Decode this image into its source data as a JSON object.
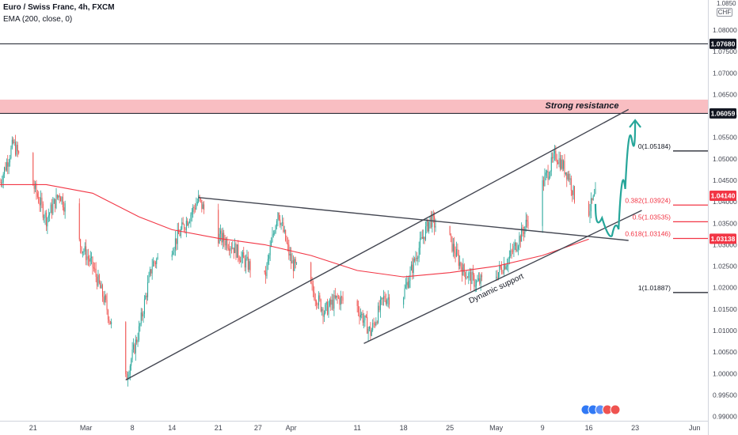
{
  "header": {
    "title": "Euro / Swiss Franc, 4h, FXCM",
    "indicator": "EMA (200, close, 0)"
  },
  "currency_badge": [
    "1.0850",
    "CHF"
  ],
  "chart_data": {
    "type": "candlestick",
    "symbol": "Euro / Swiss Franc",
    "timeframe": "4h",
    "source": "FXCM",
    "ylim": [
      0.989,
      1.087
    ],
    "y_ticks": [
      0.99,
      0.995,
      1.0,
      1.005,
      1.01,
      1.015,
      1.02,
      1.025,
      1.03,
      1.035,
      1.04,
      1.045,
      1.05,
      1.055,
      1.06,
      1.065,
      1.07,
      1.075,
      1.08
    ],
    "y_tick_labels": [
      "0.99000",
      "0.99500",
      "1.00000",
      "1.00500",
      "1.01000",
      "1.01500",
      "1.02000",
      "1.02500",
      "1.03000",
      "1.03500",
      "1.04000",
      "1.04500",
      "1.05000",
      "1.05500",
      "1.06000",
      "1.06500",
      "1.07000",
      "1.07500",
      "1.08000"
    ],
    "x_range": [
      "2022-02-16",
      "2022-06-03"
    ],
    "x_ticks": [
      {
        "label": "21",
        "date": "2022-02-21"
      },
      {
        "label": "Mar",
        "date": "2022-03-01"
      },
      {
        "label": "8",
        "date": "2022-03-08"
      },
      {
        "label": "14",
        "date": "2022-03-14"
      },
      {
        "label": "21",
        "date": "2022-03-21"
      },
      {
        "label": "27",
        "date": "2022-03-27"
      },
      {
        "label": "Apr",
        "date": "2022-04-01"
      },
      {
        "label": "11",
        "date": "2022-04-11"
      },
      {
        "label": "18",
        "date": "2022-04-18"
      },
      {
        "label": "25",
        "date": "2022-04-25"
      },
      {
        "label": "May",
        "date": "2022-05-02"
      },
      {
        "label": "9",
        "date": "2022-05-09"
      },
      {
        "label": "16",
        "date": "2022-05-16"
      },
      {
        "label": "23",
        "date": "2022-05-23"
      },
      {
        "label": "Jun",
        "date": "2022-06-01"
      }
    ],
    "price_path": [
      {
        "date": "2022-02-16",
        "price": 1.0445
      },
      {
        "date": "2022-02-18",
        "price": 1.0535
      },
      {
        "date": "2022-02-21",
        "price": 1.044
      },
      {
        "date": "2022-02-23",
        "price": 1.036
      },
      {
        "date": "2022-02-25",
        "price": 1.042
      },
      {
        "date": "2022-02-28",
        "price": 1.0305
      },
      {
        "date": "2022-03-02",
        "price": 1.025
      },
      {
        "date": "2022-03-04",
        "price": 1.016
      },
      {
        "date": "2022-03-07",
        "price": 0.9985
      },
      {
        "date": "2022-03-09",
        "price": 1.01
      },
      {
        "date": "2022-03-11",
        "price": 1.0255
      },
      {
        "date": "2022-03-14",
        "price": 1.0295
      },
      {
        "date": "2022-03-16",
        "price": 1.035
      },
      {
        "date": "2022-03-18",
        "price": 1.0405
      },
      {
        "date": "2022-03-21",
        "price": 1.032
      },
      {
        "date": "2022-03-23",
        "price": 1.03
      },
      {
        "date": "2022-03-25",
        "price": 1.026
      },
      {
        "date": "2022-03-28",
        "price": 1.022
      },
      {
        "date": "2022-03-30",
        "price": 1.038
      },
      {
        "date": "2022-04-01",
        "price": 1.026
      },
      {
        "date": "2022-04-04",
        "price": 1.02
      },
      {
        "date": "2022-04-06",
        "price": 1.0145
      },
      {
        "date": "2022-04-08",
        "price": 1.0175
      },
      {
        "date": "2022-04-11",
        "price": 1.0155
      },
      {
        "date": "2022-04-13",
        "price": 1.0095
      },
      {
        "date": "2022-04-15",
        "price": 1.0175
      },
      {
        "date": "2022-04-18",
        "price": 1.0185
      },
      {
        "date": "2022-04-20",
        "price": 1.028
      },
      {
        "date": "2022-04-22",
        "price": 1.036
      },
      {
        "date": "2022-04-25",
        "price": 1.031
      },
      {
        "date": "2022-04-27",
        "price": 1.024
      },
      {
        "date": "2022-04-29",
        "price": 1.021
      },
      {
        "date": "2022-05-02",
        "price": 1.023
      },
      {
        "date": "2022-05-04",
        "price": 1.027
      },
      {
        "date": "2022-05-06",
        "price": 1.033
      },
      {
        "date": "2022-05-09",
        "price": 1.044
      },
      {
        "date": "2022-05-11",
        "price": 1.051
      },
      {
        "date": "2022-05-13",
        "price": 1.046
      },
      {
        "date": "2022-05-14",
        "price": 1.04
      },
      {
        "date": "2022-05-16",
        "price": 1.038
      },
      {
        "date": "2022-05-17",
        "price": 1.0414
      }
    ],
    "ema_200": [
      {
        "date": "2022-02-16",
        "value": 1.044
      },
      {
        "date": "2022-02-23",
        "value": 1.044
      },
      {
        "date": "2022-03-02",
        "value": 1.042
      },
      {
        "date": "2022-03-09",
        "value": 1.0365
      },
      {
        "date": "2022-03-14",
        "value": 1.0335
      },
      {
        "date": "2022-03-21",
        "value": 1.0315
      },
      {
        "date": "2022-03-28",
        "value": 1.03
      },
      {
        "date": "2022-04-04",
        "value": 1.0275
      },
      {
        "date": "2022-04-11",
        "value": 1.024
      },
      {
        "date": "2022-04-18",
        "value": 1.0225
      },
      {
        "date": "2022-04-25",
        "value": 1.0235
      },
      {
        "date": "2022-05-02",
        "value": 1.025
      },
      {
        "date": "2022-05-09",
        "value": 1.0275
      },
      {
        "date": "2022-05-16",
        "value": 1.0313
      }
    ],
    "price_labels": [
      {
        "value": 1.0768,
        "label": "1.07680",
        "bg": "#131722"
      },
      {
        "value": 1.06059,
        "label": "1.06059",
        "bg": "#131722"
      },
      {
        "value": 1.0414,
        "label": "1.04140",
        "bg": "#f23645"
      },
      {
        "value": 1.03138,
        "label": "1.03138",
        "bg": "#f23645"
      }
    ],
    "horizontal_lines": [
      {
        "value": 1.0768,
        "color": "#131722"
      },
      {
        "value": 1.06059,
        "color": "#131722"
      }
    ],
    "resistance_zone": {
      "low": 1.06059,
      "high": 1.0638,
      "label": "Strong resistance",
      "color": "#f7a8ae"
    },
    "fibonacci": [
      {
        "level": "0",
        "price": 1.05184,
        "label": "0(1.05184)",
        "color": "#131722"
      },
      {
        "level": "0.382",
        "price": 1.03924,
        "label": "0.382(1.03924)",
        "color": "#f23645"
      },
      {
        "level": "0.5",
        "price": 1.03535,
        "label": "0.5(1.03535)",
        "color": "#f23645"
      },
      {
        "level": "0.618",
        "price": 1.03146,
        "label": "0.618(1.03146)",
        "color": "#f23645"
      },
      {
        "level": "1",
        "price": 1.01887,
        "label": "1(1.01887)",
        "color": "#131722"
      }
    ],
    "trendlines": [
      {
        "name": "rising-channel-upper",
        "from": {
          "date": "2022-03-07",
          "price": 0.9985
        },
        "to": {
          "date": "2022-05-22",
          "price": 1.0615
        }
      },
      {
        "name": "neckline",
        "from": {
          "date": "2022-03-18",
          "price": 1.041
        },
        "to": {
          "date": "2022-05-22",
          "price": 1.031
        }
      },
      {
        "name": "dynamic-support",
        "from": {
          "date": "2022-04-12",
          "price": 1.007
        },
        "to": {
          "date": "2022-05-24",
          "price": 1.038
        }
      }
    ],
    "annotations": [
      {
        "text": "Strong resistance"
      },
      {
        "text": "Dynamic support"
      }
    ],
    "projection": {
      "color": "#26a69a",
      "points": [
        {
          "date": "2022-05-17",
          "price": 1.0395
        },
        {
          "date": "2022-05-19",
          "price": 1.033
        },
        {
          "date": "2022-05-20",
          "price": 1.0312
        },
        {
          "date": "2022-05-21",
          "price": 1.036
        },
        {
          "date": "2022-05-22",
          "price": 1.05
        },
        {
          "date": "2022-05-23",
          "price": 1.059
        }
      ]
    },
    "colors": {
      "up": "#26a69a",
      "down": "#ef5350",
      "ema": "#f23645",
      "lines": "#434651"
    }
  }
}
